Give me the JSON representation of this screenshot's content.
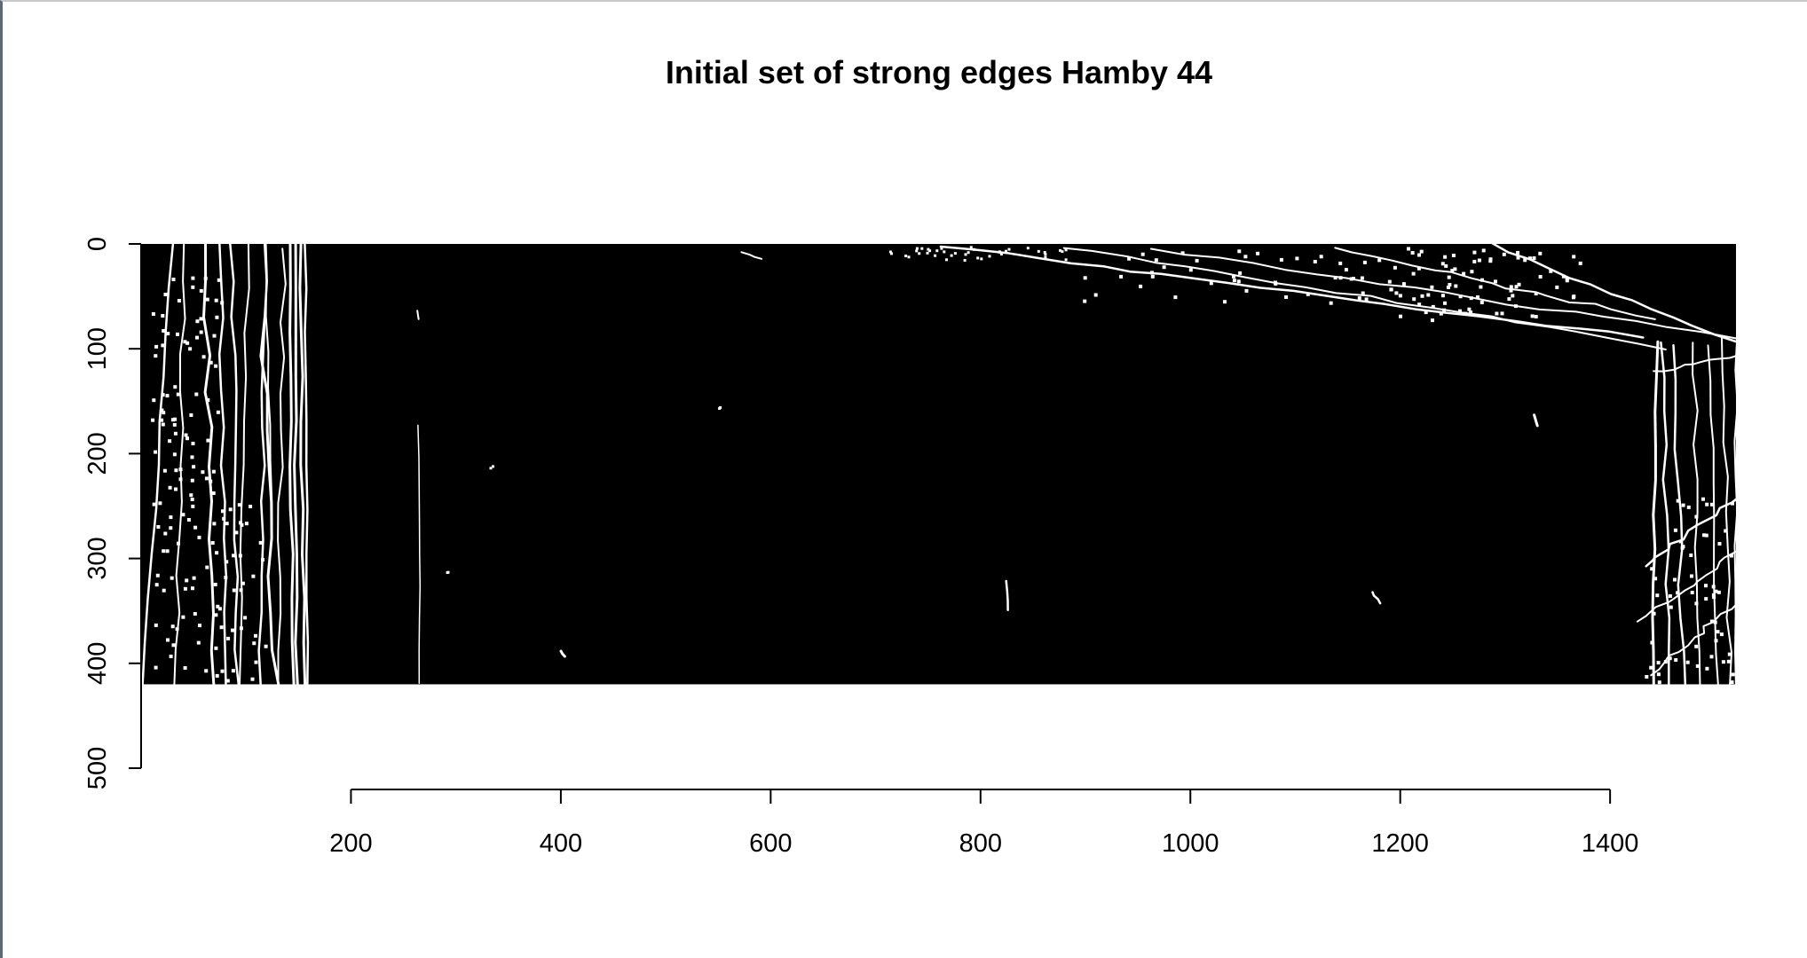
{
  "chart_data": {
    "type": "heatmap",
    "title": "Initial set of strong edges Hamby 44",
    "xlabel": "",
    "ylabel": "",
    "x_ticks": [
      200,
      400,
      600,
      800,
      1000,
      1200,
      1400
    ],
    "y_ticks": [
      0,
      100,
      200,
      300,
      400,
      500
    ],
    "xlim": [
      0,
      1520
    ],
    "ylim": [
      500,
      0
    ],
    "image_extent": {
      "x": [
        0,
        1520
      ],
      "y": [
        0,
        420
      ]
    },
    "values": "binary edge map (0 = background black, 1 = strong edge white)",
    "colors": {
      "background": "#000000",
      "edge": "#ffffff"
    }
  }
}
